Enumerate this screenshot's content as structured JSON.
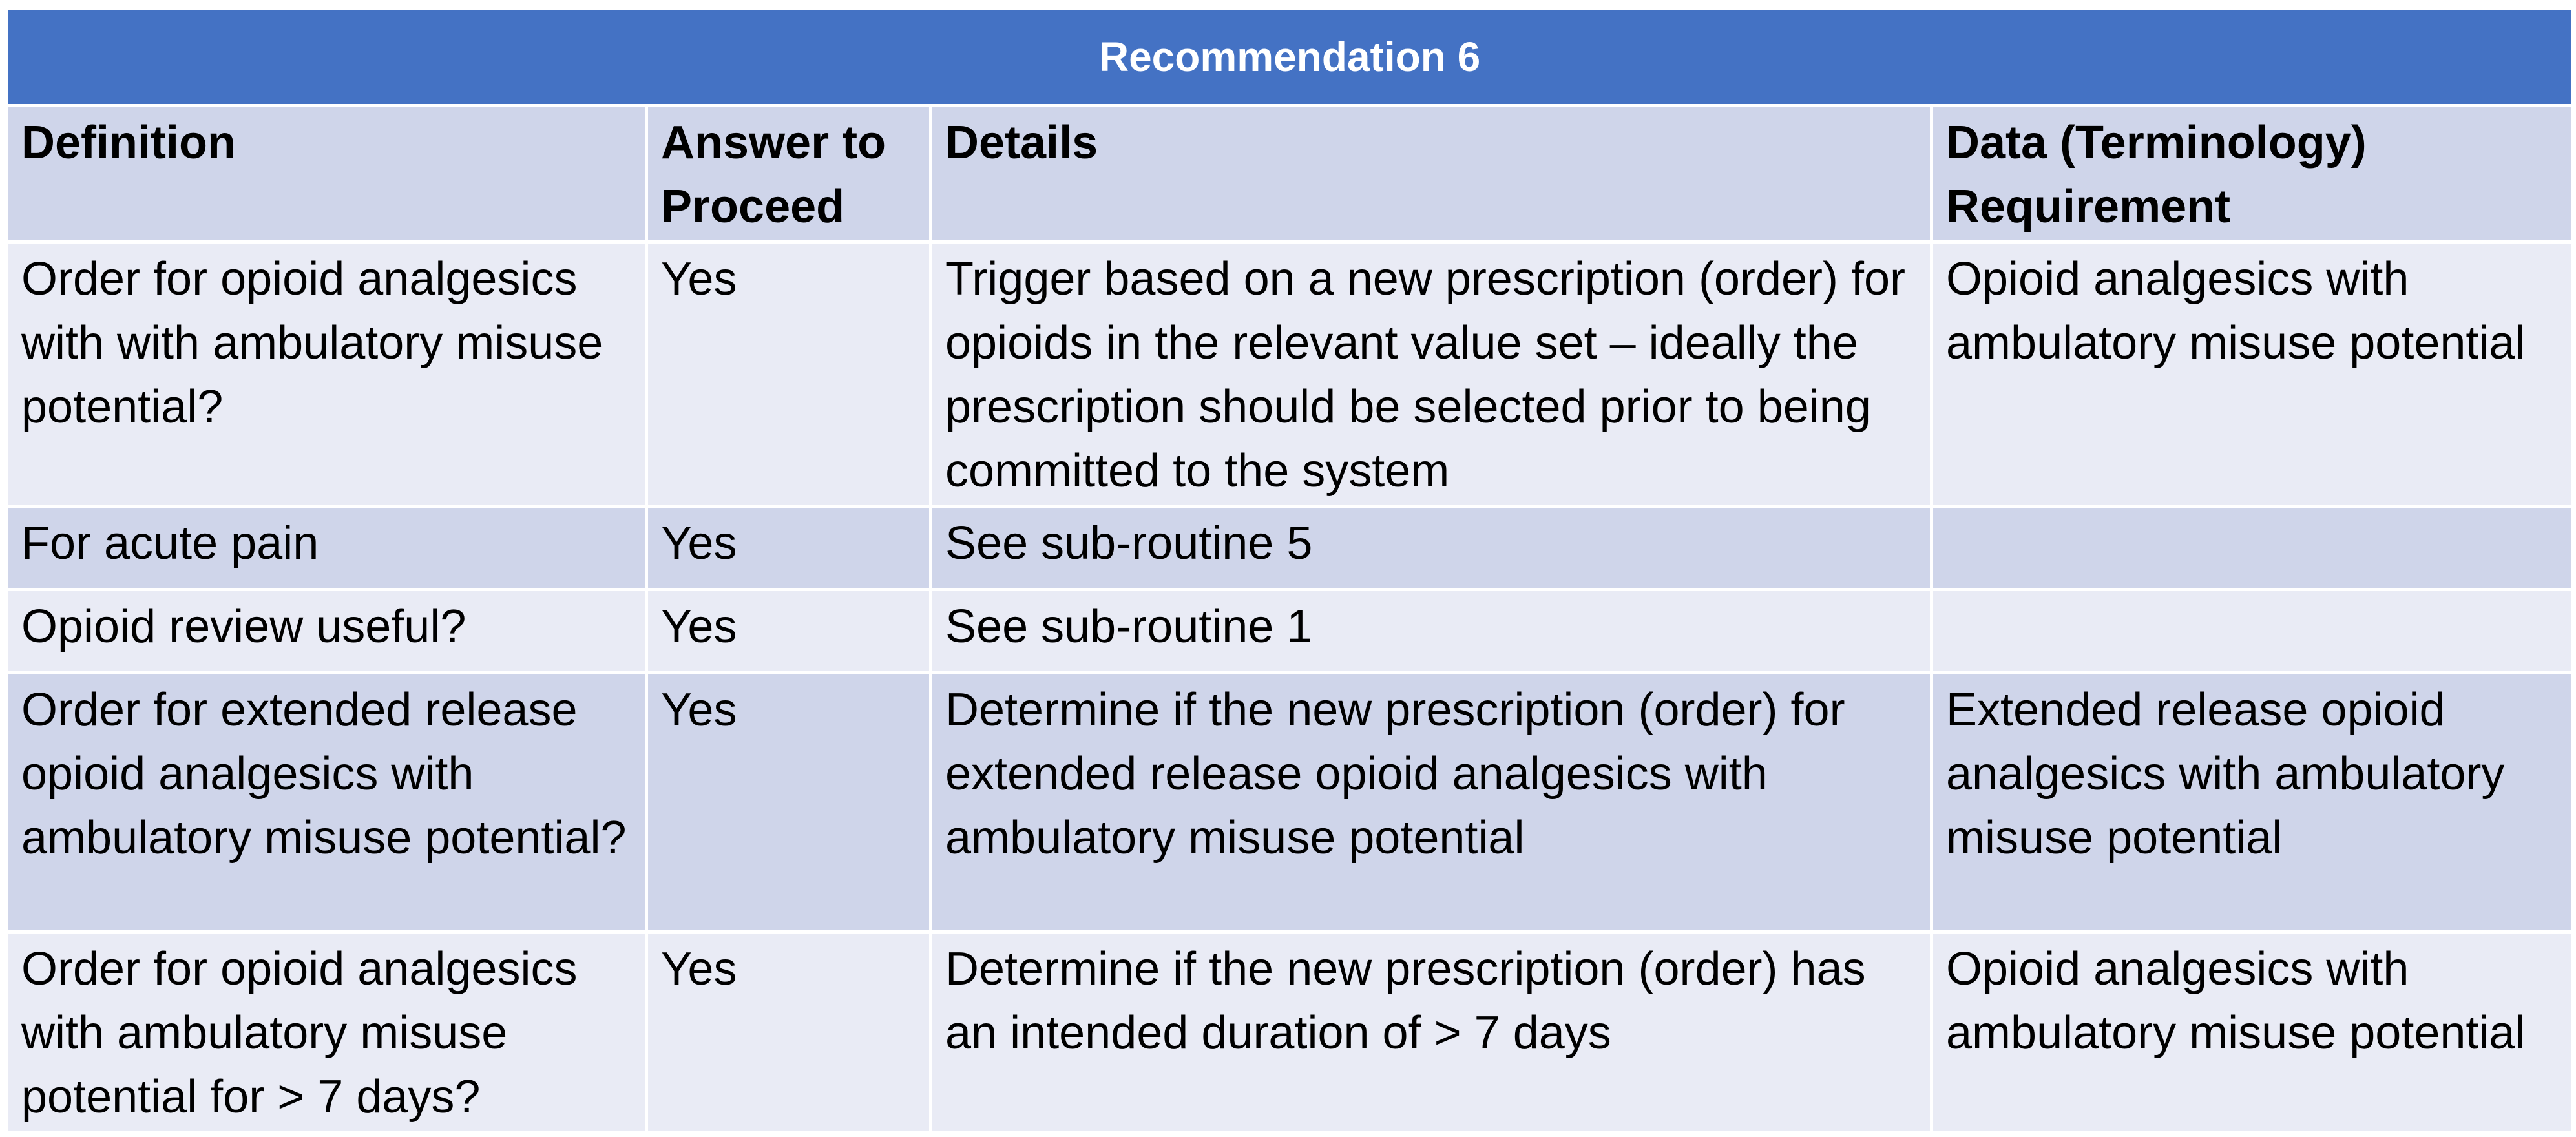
{
  "title": "Recommendation 6",
  "colors": {
    "banner": "#4472c4",
    "row_dark": "#cfd5ea",
    "row_light": "#e9ebf5"
  },
  "table": {
    "columns": [
      "Definition",
      "Answer to Proceed",
      "Details",
      "Data (Terminology) Requirement"
    ],
    "rows": [
      {
        "definition": "Order for opioid analgesics with with ambulatory misuse potential?",
        "answer": "Yes",
        "details": "Trigger based on a new prescription (order) for opioids in the relevant value set – ideally the prescription should be selected prior to being committed to the system",
        "requirement": "Opioid analgesics with ambulatory misuse potential"
      },
      {
        "definition": "For acute pain",
        "answer": "Yes",
        "details": "See sub-routine 5",
        "requirement": ""
      },
      {
        "definition": "Opioid review useful?",
        "answer": "Yes",
        "details": "See sub-routine 1",
        "requirement": ""
      },
      {
        "definition": "Order for extended release opioid analgesics with ambulatory misuse potential?",
        "answer": "Yes",
        "details": "Determine if the new prescription (order) for extended release opioid analgesics with ambulatory misuse potential",
        "requirement": "Extended release opioid analgesics with ambulatory misuse potential"
      },
      {
        "definition": "Order for opioid analgesics with ambulatory misuse potential for > 7 days?",
        "answer": "Yes",
        "details": "Determine if the new prescription (order) has an intended duration of > 7 days",
        "requirement": "Opioid analgesics with ambulatory misuse potential"
      }
    ]
  }
}
